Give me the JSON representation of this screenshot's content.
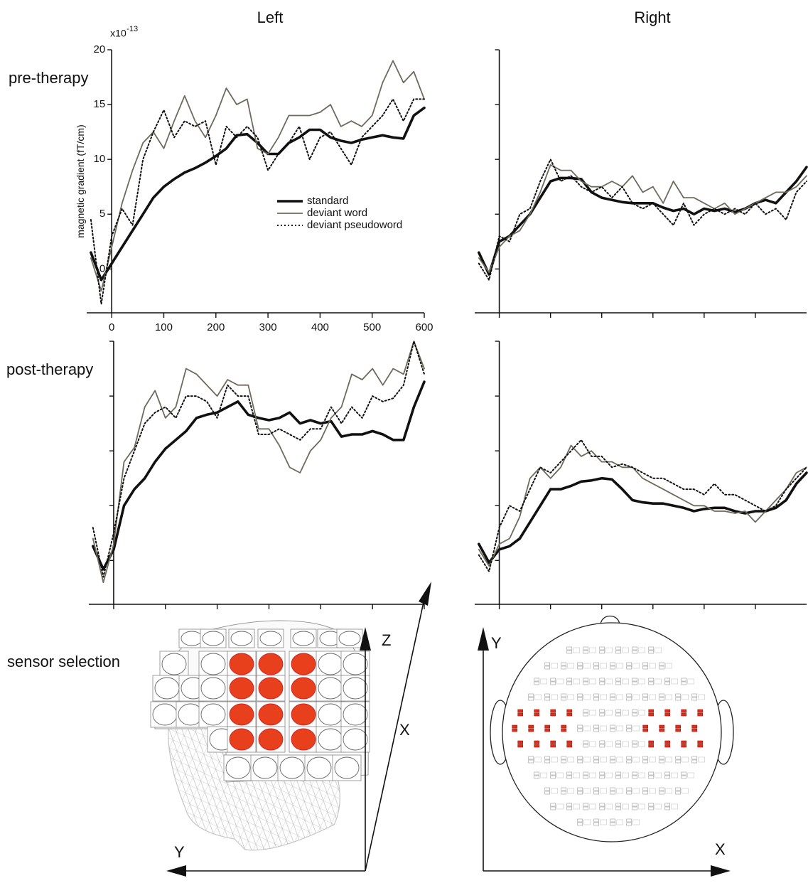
{
  "column_titles": [
    "Left",
    "Right"
  ],
  "row_labels": [
    "pre-therapy",
    "post-therapy",
    "sensor selection"
  ],
  "diagram": {
    "head_axes": [
      "Z",
      "X",
      "Y"
    ],
    "map_axes": [
      "Y",
      "X"
    ]
  },
  "chart_data": [
    {
      "type": "line",
      "tick_labels": true,
      "legend": true,
      "ylabel": "magnetic gradient (fT/cm)",
      "y_multiplier": {
        "base": "x10",
        "exponent": "-13"
      },
      "xlim": [
        -48,
        600
      ],
      "ylim": [
        -4,
        20
      ],
      "xticks": [
        0,
        100,
        200,
        300,
        400,
        500,
        600
      ],
      "yticks": [
        0,
        5,
        10,
        15,
        20
      ],
      "x": [
        -40,
        -20,
        0,
        20,
        40,
        60,
        80,
        100,
        120,
        140,
        160,
        180,
        200,
        220,
        240,
        260,
        280,
        300,
        320,
        340,
        360,
        380,
        400,
        420,
        440,
        460,
        480,
        500,
        520,
        540,
        560,
        580,
        600
      ],
      "series": [
        {
          "name": "standard",
          "color": "#111111",
          "line_style": "thick",
          "values": [
            1.5,
            -1,
            0.5,
            2,
            3.5,
            5,
            6.5,
            7.5,
            8.2,
            8.8,
            9.2,
            9.7,
            10.3,
            11,
            12.2,
            12.3,
            11.5,
            10.5,
            10.5,
            11.5,
            12,
            12.7,
            12.7,
            12,
            11.7,
            11.5,
            11.8,
            12,
            12.2,
            12,
            11.9,
            14,
            14.7
          ]
        },
        {
          "name": "deviant word",
          "color": "#6e6a5e",
          "line_style": "thin",
          "values": [
            1,
            -2,
            2,
            6,
            9,
            11.5,
            12.5,
            11,
            13.5,
            15.8,
            13.5,
            12,
            14,
            16.5,
            15,
            15.5,
            11,
            10.5,
            12,
            14,
            14,
            14,
            14.3,
            15,
            13,
            13.5,
            13,
            14,
            17,
            19,
            17,
            18,
            15.5
          ]
        },
        {
          "name": "deviant pseudoword",
          "color": "#111111",
          "line_style": "dotted",
          "values": [
            4.5,
            -3.2,
            3,
            5.5,
            4,
            10,
            12.5,
            14.5,
            12,
            13.5,
            13,
            13.5,
            9.5,
            13,
            12,
            13,
            12,
            9,
            10.5,
            11.5,
            13,
            10,
            12,
            12.5,
            11,
            9.5,
            12,
            13,
            14,
            15.5,
            13.5,
            15.5,
            15.5
          ]
        }
      ]
    },
    {
      "type": "line",
      "tick_labels": false,
      "legend": false,
      "xlim": [
        -48,
        600
      ],
      "ylim": [
        -4,
        20
      ],
      "xticks": [
        0,
        100,
        200,
        300,
        400,
        500
      ],
      "yticks": [
        0,
        5,
        10,
        15,
        20
      ],
      "x": [
        -40,
        -20,
        0,
        20,
        40,
        60,
        80,
        100,
        120,
        140,
        160,
        180,
        200,
        220,
        240,
        260,
        280,
        300,
        320,
        340,
        360,
        380,
        400,
        420,
        440,
        460,
        480,
        500,
        520,
        540,
        560,
        580,
        600
      ],
      "series": [
        {
          "color": "#111111",
          "line_style": "thick",
          "values": [
            1.5,
            -0.5,
            2.5,
            3,
            4,
            5,
            6.5,
            8,
            8.3,
            8.3,
            8.2,
            7,
            6.5,
            6.3,
            6.1,
            6,
            6,
            6,
            5.6,
            5.3,
            5.5,
            5,
            5.5,
            5.3,
            5.5,
            5.2,
            5.5,
            6,
            6.3,
            6,
            7,
            8,
            9.3
          ]
        },
        {
          "color": "#6e6a5e",
          "line_style": "thin",
          "values": [
            1,
            -0.3,
            2,
            3,
            3.5,
            5,
            7,
            9.5,
            9,
            9,
            8,
            7.5,
            7.5,
            8,
            7.5,
            8.5,
            7,
            7.5,
            6,
            8,
            6.5,
            6.5,
            6,
            5.5,
            6,
            5,
            5.5,
            6,
            6.5,
            7,
            7,
            7.5,
            8.5
          ]
        },
        {
          "color": "#111111",
          "line_style": "dotted",
          "values": [
            0.5,
            -1,
            3,
            2.5,
            5,
            5.5,
            8,
            10,
            8,
            8.5,
            7.5,
            7,
            7.5,
            6.5,
            7.5,
            6,
            5.5,
            6,
            5,
            4,
            6,
            4,
            5,
            5.5,
            5,
            5.5,
            5,
            6,
            5,
            5.5,
            4.5,
            7,
            8
          ]
        }
      ]
    },
    {
      "type": "line",
      "tick_labels": false,
      "legend": false,
      "xlim": [
        -48,
        600
      ],
      "ylim": [
        -4,
        20
      ],
      "xticks": [
        0,
        100,
        200,
        300,
        400,
        500,
        600
      ],
      "yticks": [
        0,
        5,
        10,
        15,
        20
      ],
      "x": [
        -40,
        -20,
        0,
        20,
        40,
        60,
        80,
        100,
        120,
        140,
        160,
        180,
        200,
        220,
        240,
        260,
        280,
        300,
        320,
        340,
        360,
        380,
        400,
        420,
        440,
        460,
        480,
        500,
        520,
        540,
        560,
        580,
        600
      ],
      "series": [
        {
          "color": "#111111",
          "line_style": "thick",
          "values": [
            1.3,
            -0.8,
            1,
            5,
            6.5,
            7.5,
            9,
            10.2,
            11,
            11.8,
            13,
            13.3,
            13.5,
            14,
            14.5,
            13.3,
            13,
            12.8,
            13,
            13.5,
            12.5,
            12.8,
            12.5,
            12.7,
            11.3,
            11.5,
            11.5,
            11.8,
            11.5,
            11,
            11,
            14,
            16.3
          ]
        },
        {
          "color": "#6e6a5e",
          "line_style": "thin",
          "values": [
            2,
            -2,
            1.5,
            9,
            10.3,
            14,
            15.5,
            13,
            14,
            17.5,
            17,
            16,
            15,
            16.5,
            16,
            16,
            12,
            12,
            10.5,
            8.5,
            8,
            10,
            11,
            13,
            14,
            17,
            16.5,
            17.5,
            16,
            17.5,
            17,
            20,
            17.5
          ]
        },
        {
          "color": "#111111",
          "line_style": "dotted",
          "values": [
            3,
            -1.5,
            2.5,
            7.5,
            10,
            12.5,
            13.5,
            14,
            13,
            15,
            15,
            14.5,
            13,
            16,
            15,
            15,
            11.5,
            11.5,
            12,
            11.5,
            11,
            12,
            12,
            14,
            12.5,
            14,
            13,
            15,
            14.5,
            14.8,
            16,
            20,
            17
          ]
        }
      ]
    },
    {
      "type": "line",
      "tick_labels": false,
      "legend": false,
      "xlim": [
        -48,
        600
      ],
      "ylim": [
        -4,
        20
      ],
      "xticks": [
        0,
        100,
        200,
        300,
        400,
        500
      ],
      "yticks": [
        0,
        5,
        10,
        15,
        20
      ],
      "x": [
        -40,
        -20,
        0,
        20,
        40,
        60,
        80,
        100,
        120,
        140,
        160,
        180,
        200,
        220,
        240,
        260,
        280,
        300,
        320,
        340,
        360,
        380,
        400,
        420,
        440,
        460,
        480,
        500,
        520,
        540,
        560,
        580,
        600
      ],
      "series": [
        {
          "color": "#111111",
          "line_style": "thick",
          "values": [
            1.5,
            -0.2,
            1,
            1.3,
            2,
            3.5,
            5,
            6.5,
            6.5,
            6.8,
            7.2,
            7.3,
            7.5,
            7.4,
            6.5,
            5.5,
            5.3,
            5.2,
            5.2,
            5,
            4.8,
            4.5,
            4.7,
            4.8,
            4.8,
            4.5,
            4.3,
            4.5,
            4.5,
            4.8,
            5.5,
            7,
            8
          ]
        },
        {
          "color": "#6e6a5e",
          "line_style": "thin",
          "values": [
            1,
            -0.5,
            1.5,
            2,
            4,
            7.5,
            8.5,
            7.5,
            8.5,
            10.5,
            9.5,
            10,
            9,
            9,
            8.5,
            8.5,
            7.5,
            7,
            6.5,
            6,
            5.5,
            5,
            5,
            4.5,
            4.5,
            4.3,
            4.5,
            3.5,
            4.5,
            5.5,
            6.5,
            8,
            8.5
          ]
        },
        {
          "color": "#111111",
          "line_style": "dotted",
          "values": [
            0.5,
            -1,
            3,
            5,
            4.5,
            6.5,
            8.5,
            8,
            9,
            10,
            11,
            9.5,
            9.5,
            8.5,
            8.8,
            8.5,
            8,
            7.5,
            7.5,
            7,
            6.5,
            6.5,
            6,
            7,
            6,
            6,
            5.5,
            5,
            4.5,
            5,
            6.5,
            7.5,
            8.5
          ]
        }
      ]
    }
  ]
}
